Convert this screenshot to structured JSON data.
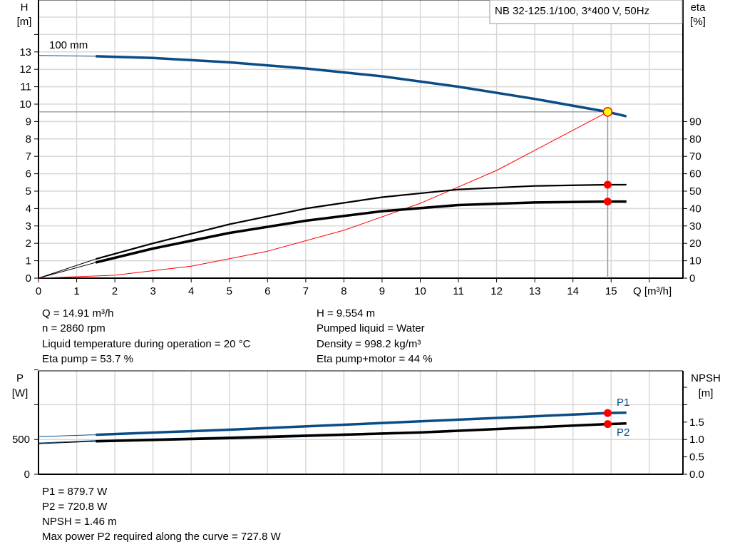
{
  "title_box": "NB 32-125.1/100, 3*400 V, 50Hz",
  "colors": {
    "head": "#0a4c85",
    "eta": "#000000",
    "system": "#ff0000",
    "point": "#ff0000",
    "duty": "#ffff00",
    "grid": "#d8d8d8"
  },
  "chart_data": [
    {
      "type": "line",
      "title": "NB 32-125.1/100, 3*400 V, 50Hz",
      "xlabel": "Q [m³/h]",
      "ylabel": "H\n[m]",
      "y2label": "eta\n[%]",
      "xlim": [
        0,
        16.5
      ],
      "ylim": [
        0,
        16
      ],
      "y2lim": [
        0,
        160
      ],
      "grid": true,
      "x_ticks": [
        0,
        1,
        2,
        3,
        4,
        5,
        6,
        7,
        8,
        9,
        10,
        11,
        12,
        13,
        14,
        15
      ],
      "y_ticks": [
        0,
        1,
        2,
        3,
        4,
        5,
        6,
        7,
        8,
        9,
        10,
        11,
        12,
        13
      ],
      "y2_ticks": [
        0,
        10,
        20,
        30,
        40,
        50,
        60,
        70,
        80,
        90
      ],
      "annotation": "100 mm",
      "series": [
        {
          "key": "head",
          "axis": "y",
          "x": [
            0,
            1.5,
            3,
            5,
            7,
            9,
            11,
            13,
            14.91,
            15.4
          ],
          "y": [
            12.8,
            12.75,
            12.65,
            12.4,
            12.05,
            11.6,
            11.0,
            10.3,
            9.554,
            9.3
          ]
        },
        {
          "key": "eta_pump",
          "axis": "y2",
          "x": [
            0,
            1.5,
            3,
            5,
            7,
            9,
            11,
            13,
            14.91,
            15.4
          ],
          "y": [
            0,
            11,
            20,
            31,
            40,
            46.5,
            51,
            53,
            53.7,
            53.7
          ]
        },
        {
          "key": "eta_total",
          "axis": "y2",
          "x": [
            0,
            1.5,
            3,
            5,
            7,
            9,
            11,
            13,
            14.91,
            15.4
          ],
          "y": [
            0,
            9,
            17,
            26,
            33,
            38.5,
            42,
            43.5,
            44,
            44
          ]
        },
        {
          "key": "system",
          "axis": "y",
          "x": [
            0,
            2,
            4,
            6,
            8,
            10,
            12,
            14.91
          ],
          "y": [
            0,
            0.17,
            0.69,
            1.55,
            2.75,
            4.3,
            6.19,
            9.554
          ]
        }
      ],
      "duty_point": {
        "Q": 14.91,
        "H": 9.554,
        "eta_pump": 53.7,
        "eta_total": 44
      }
    },
    {
      "type": "line",
      "ylabel": "P\n[W]",
      "y2label": "NPSH\n[m]",
      "xlim": [
        0,
        16.5
      ],
      "ylim": [
        0,
        1500
      ],
      "y2lim": [
        0,
        3
      ],
      "grid": true,
      "y_ticks": [
        0,
        500
      ],
      "y_ticks_unlabeled": [
        1000,
        1500
      ],
      "y2_ticks": [
        "0.0",
        "0.5",
        "1.0",
        "1.5"
      ],
      "series": [
        {
          "name": "P1",
          "axis": "y",
          "x": [
            0,
            1.5,
            5,
            10,
            14.91,
            15.4
          ],
          "y": [
            540,
            568,
            640,
            760,
            879.7,
            885
          ]
        },
        {
          "name": "P2",
          "axis": "y",
          "x": [
            0,
            1.5,
            5,
            10,
            14.91,
            15.4
          ],
          "y": [
            440,
            473,
            520,
            600,
            720.8,
            730
          ]
        },
        {
          "key": "npsh",
          "axis": "y2",
          "x": [
            0,
            1.5,
            5,
            10,
            14.91
          ],
          "y": [
            0.9,
            0.97,
            1.07,
            1.22,
            1.46
          ]
        }
      ]
    }
  ],
  "info_top": {
    "left": [
      "Q = 14.91 m³/h",
      "n = 2860 rpm",
      "Liquid temperature during operation = 20 °C",
      "Eta pump = 53.7 %"
    ],
    "right": [
      "H = 9.554 m",
      "Pumped liquid = Water",
      "Density = 998.2 kg/m³",
      "Eta pump+motor = 44 %"
    ]
  },
  "info_bottom": [
    "P1 = 879.7 W",
    "P2 = 720.8 W",
    "NPSH = 1.46 m",
    "Max power P2 required along the curve = 727.8 W"
  ]
}
